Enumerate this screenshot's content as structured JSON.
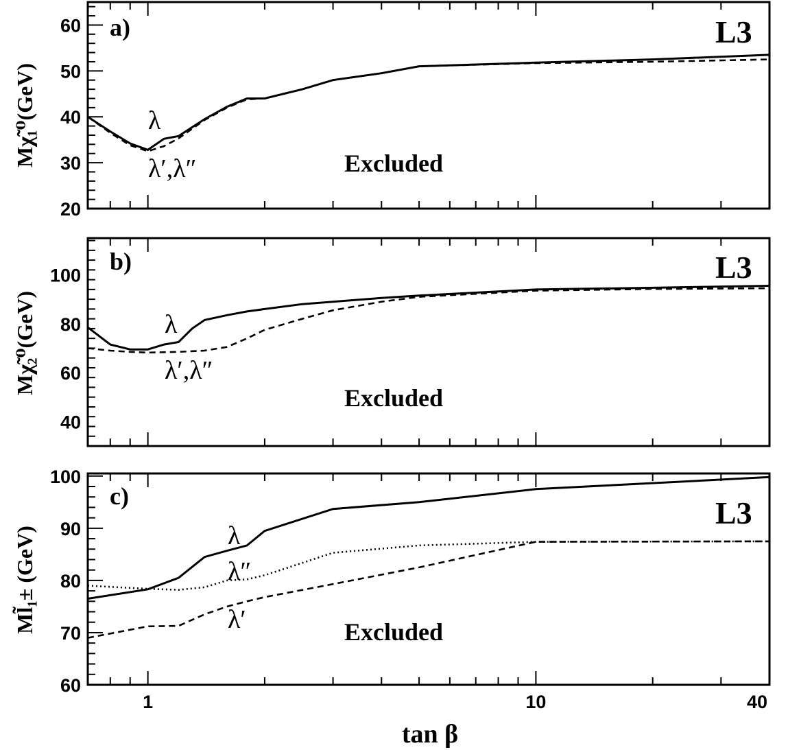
{
  "chart_data": [
    {
      "type": "line",
      "panel_label": "a)",
      "experiment": "L3",
      "ylabel": "Mχ̃₁⁰(GeV)",
      "xscale": "log",
      "xlim": [
        0.7,
        40
      ],
      "ylim": [
        20,
        65
      ],
      "yticks": [
        20,
        30,
        40,
        50,
        60
      ],
      "region_label": "Excluded",
      "series": [
        {
          "style": "solid",
          "x": [
            0.7,
            0.8,
            0.9,
            1.0,
            1.1,
            1.2,
            1.4,
            1.6,
            1.8,
            2.0,
            2.5,
            3.0,
            4.0,
            5.0,
            10,
            20,
            40
          ],
          "y": [
            40,
            36.8,
            34.2,
            32.8,
            35.2,
            35.8,
            39.5,
            42.2,
            44.0,
            44.0,
            46.0,
            48.0,
            49.5,
            51.0,
            51.8,
            52.5,
            53.5
          ]
        },
        {
          "style": "dashed",
          "x": [
            0.7,
            0.8,
            0.9,
            1.0,
            1.1,
            1.2,
            1.4,
            1.6,
            1.8,
            2.0,
            2.5,
            3.0,
            4.0,
            5.0,
            10,
            20,
            40
          ],
          "y": [
            40,
            36.5,
            33.8,
            32.5,
            33.6,
            35.3,
            39.3,
            42.0,
            43.8,
            44.0,
            46.0,
            48.0,
            49.5,
            51.0,
            51.7,
            52.0,
            52.5
          ]
        }
      ],
      "annotations": [
        "λ",
        "λ′,λ″"
      ]
    },
    {
      "type": "line",
      "panel_label": "b)",
      "experiment": "L3",
      "ylabel": "Mχ̃₂⁰(GeV)",
      "xscale": "log",
      "xlim": [
        0.7,
        40
      ],
      "ylim": [
        30,
        115
      ],
      "yticks": [
        40,
        60,
        80,
        100
      ],
      "region_label": "Excluded",
      "series": [
        {
          "style": "solid",
          "x": [
            0.7,
            0.8,
            0.9,
            1.0,
            1.1,
            1.2,
            1.3,
            1.4,
            1.6,
            1.8,
            2.0,
            2.5,
            3.0,
            4.0,
            5.0,
            10,
            20,
            40
          ],
          "y": [
            78.5,
            71.5,
            69.5,
            69.5,
            71.5,
            72.5,
            78.0,
            81.5,
            83.5,
            85.0,
            86.0,
            88.0,
            89.0,
            90.5,
            91.5,
            94.0,
            94.7,
            95.5
          ]
        },
        {
          "style": "dashed",
          "x": [
            0.7,
            0.8,
            0.9,
            1.0,
            1.2,
            1.4,
            1.6,
            1.8,
            2.0,
            2.5,
            3.0,
            4.0,
            5.0,
            10,
            20,
            40
          ],
          "y": [
            70.0,
            69.0,
            68.5,
            68.2,
            68.5,
            69.0,
            70.5,
            74.0,
            77.5,
            82.0,
            85.5,
            89.0,
            91.0,
            93.5,
            94.2,
            94.5
          ]
        }
      ],
      "annotations": [
        "λ",
        "λ′,λ″"
      ]
    },
    {
      "type": "line",
      "panel_label": "c)",
      "experiment": "L3",
      "ylabel": "Ml̃₁± (GeV)",
      "xscale": "log",
      "xlim": [
        0.7,
        40
      ],
      "ylim": [
        60,
        100.5
      ],
      "yticks": [
        60,
        70,
        80,
        90,
        100
      ],
      "xticks": [
        1,
        10,
        40
      ],
      "xlabel": "tan β",
      "region_label": "Excluded",
      "series": [
        {
          "style": "solid",
          "x": [
            0.7,
            1.0,
            1.2,
            1.4,
            1.6,
            1.8,
            2.0,
            3.0,
            5.0,
            10,
            40
          ],
          "y": [
            76.5,
            78.3,
            80.5,
            84.5,
            85.7,
            86.7,
            89.5,
            93.7,
            95.0,
            97.5,
            99.8
          ]
        },
        {
          "style": "dotted",
          "x": [
            0.7,
            1.0,
            1.2,
            1.4,
            1.6,
            1.8,
            2.0,
            3.0,
            5.0,
            10,
            40
          ],
          "y": [
            79.0,
            78.4,
            78.2,
            78.7,
            80.0,
            80.2,
            81.0,
            85.3,
            86.7,
            87.4,
            87.5
          ]
        },
        {
          "style": "dashed",
          "x": [
            0.7,
            1.0,
            1.2,
            1.4,
            1.6,
            1.8,
            2.0,
            3.0,
            5.0,
            10,
            40
          ],
          "y": [
            69.0,
            71.2,
            71.3,
            73.5,
            75.0,
            76.0,
            76.8,
            79.3,
            82.5,
            87.4,
            87.5
          ]
        }
      ],
      "annotations": [
        "λ",
        "λ″",
        "λ′"
      ]
    }
  ]
}
